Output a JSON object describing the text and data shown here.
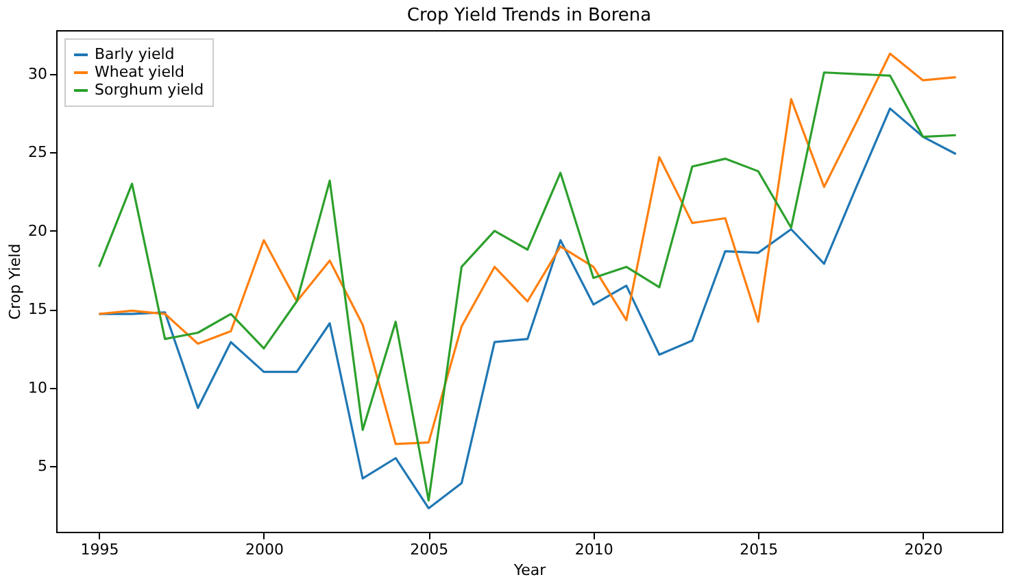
{
  "chart_data": {
    "type": "line",
    "title": "Crop Yield Trends in Borena",
    "xlabel": "Year",
    "ylabel": "Crop Yield",
    "x": [
      1995,
      1996,
      1997,
      1998,
      1999,
      2000,
      2001,
      2002,
      2003,
      2004,
      2005,
      2006,
      2007,
      2008,
      2009,
      2010,
      2011,
      2012,
      2013,
      2014,
      2015,
      2016,
      2017,
      2018,
      2019,
      2020,
      2021
    ],
    "series": [
      {
        "name": "Barly yield",
        "color": "#1f77b4",
        "values": [
          14.7,
          14.7,
          14.8,
          8.7,
          12.9,
          11.0,
          11.0,
          14.1,
          4.2,
          5.5,
          2.3,
          3.9,
          12.9,
          13.1,
          19.4,
          15.3,
          16.5,
          12.1,
          13.0,
          18.7,
          18.6,
          20.1,
          17.9,
          22.9,
          27.8,
          26.0,
          24.9
        ]
      },
      {
        "name": "Wheat yield",
        "color": "#ff7f0e",
        "values": [
          14.7,
          14.9,
          14.7,
          12.8,
          13.6,
          19.4,
          15.5,
          18.1,
          14.0,
          6.4,
          6.5,
          13.9,
          17.7,
          15.5,
          19.0,
          17.7,
          14.3,
          24.7,
          20.5,
          20.8,
          14.2,
          28.4,
          22.8,
          27.0,
          31.3,
          29.6,
          29.8
        ]
      },
      {
        "name": "Sorghum yield",
        "color": "#2ca02c",
        "values": [
          17.7,
          23.0,
          13.1,
          13.5,
          14.7,
          12.5,
          15.5,
          23.2,
          7.3,
          14.2,
          2.8,
          17.7,
          20.0,
          18.8,
          23.7,
          17.0,
          17.7,
          16.4,
          24.1,
          24.6,
          23.8,
          20.2,
          30.1,
          30.0,
          29.9,
          26.0,
          26.1
        ]
      }
    ],
    "xlim": [
      1993.7,
      2022.4
    ],
    "xticks": [
      1995,
      2000,
      2005,
      2010,
      2015,
      2020
    ],
    "ylim": [
      0.8,
      32.8
    ],
    "yticks": [
      5,
      10,
      15,
      20,
      25,
      30
    ],
    "legend": "top left",
    "line_style": "solid",
    "marker": "none"
  }
}
